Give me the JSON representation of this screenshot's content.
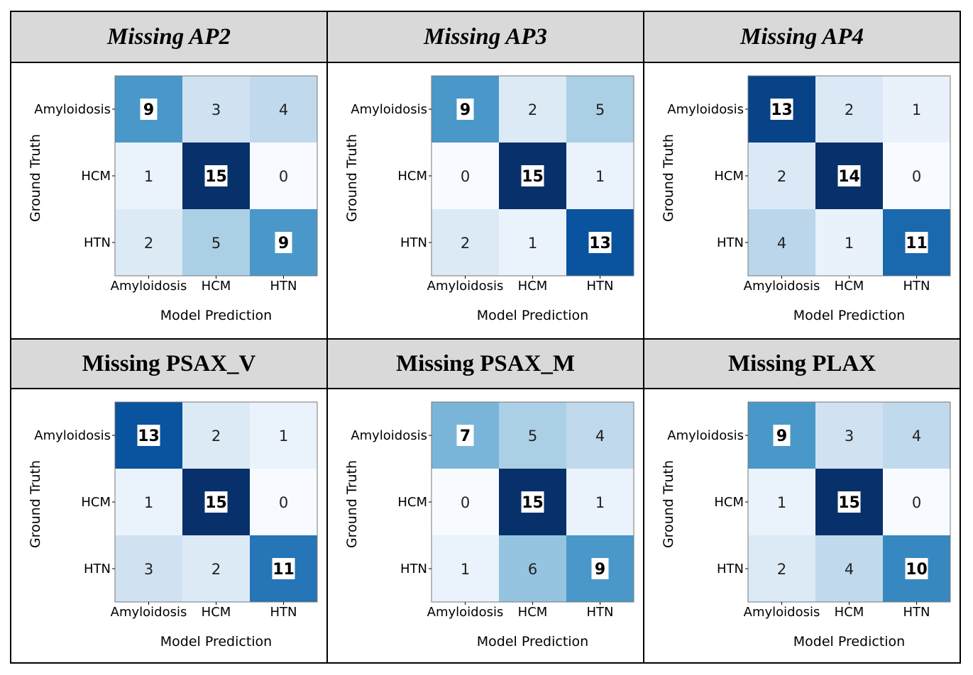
{
  "chart_data": [
    {
      "type": "heatmap",
      "title": "Missing AP2",
      "title_italic": true,
      "xlabel": "Model Prediction",
      "ylabel": "Ground Truth",
      "x_categories": [
        "Amyloidosis",
        "HCM",
        "HTN"
      ],
      "y_categories": [
        "Amyloidosis",
        "HCM",
        "HTN"
      ],
      "values": [
        [
          9,
          3,
          4
        ],
        [
          1,
          15,
          0
        ],
        [
          2,
          5,
          9
        ]
      ],
      "colormap": "Blues",
      "value_range": [
        0,
        15
      ]
    },
    {
      "type": "heatmap",
      "title": "Missing AP3",
      "title_italic": true,
      "xlabel": "Model Prediction",
      "ylabel": "Ground Truth",
      "x_categories": [
        "Amyloidosis",
        "HCM",
        "HTN"
      ],
      "y_categories": [
        "Amyloidosis",
        "HCM",
        "HTN"
      ],
      "values": [
        [
          9,
          2,
          5
        ],
        [
          0,
          15,
          1
        ],
        [
          2,
          1,
          13
        ]
      ],
      "colormap": "Blues",
      "value_range": [
        0,
        15
      ]
    },
    {
      "type": "heatmap",
      "title": "Missing AP4",
      "title_italic": true,
      "xlabel": "Model Prediction",
      "ylabel": "Ground Truth",
      "x_categories": [
        "Amyloidosis",
        "HCM",
        "HTN"
      ],
      "y_categories": [
        "Amyloidosis",
        "HCM",
        "HTN"
      ],
      "values": [
        [
          13,
          2,
          1
        ],
        [
          2,
          14,
          0
        ],
        [
          4,
          1,
          11
        ]
      ],
      "colormap": "Blues",
      "value_range": [
        0,
        14
      ]
    },
    {
      "type": "heatmap",
      "title": "Missing PSAX_V",
      "title_italic": false,
      "xlabel": "Model Prediction",
      "ylabel": "Ground Truth",
      "x_categories": [
        "Amyloidosis",
        "HCM",
        "HTN"
      ],
      "y_categories": [
        "Amyloidosis",
        "HCM",
        "HTN"
      ],
      "values": [
        [
          13,
          2,
          1
        ],
        [
          1,
          15,
          0
        ],
        [
          3,
          2,
          11
        ]
      ],
      "colormap": "Blues",
      "value_range": [
        0,
        15
      ]
    },
    {
      "type": "heatmap",
      "title": "Missing PSAX_M",
      "title_italic": false,
      "xlabel": "Model Prediction",
      "ylabel": "Ground Truth",
      "x_categories": [
        "Amyloidosis",
        "HCM",
        "HTN"
      ],
      "y_categories": [
        "Amyloidosis",
        "HCM",
        "HTN"
      ],
      "values": [
        [
          7,
          5,
          4
        ],
        [
          0,
          15,
          1
        ],
        [
          1,
          6,
          9
        ]
      ],
      "colormap": "Blues",
      "value_range": [
        0,
        15
      ]
    },
    {
      "type": "heatmap",
      "title": "Missing PLAX",
      "title_italic": false,
      "xlabel": "Model Prediction",
      "ylabel": "Ground Truth",
      "x_categories": [
        "Amyloidosis",
        "HCM",
        "HTN"
      ],
      "y_categories": [
        "Amyloidosis",
        "HCM",
        "HTN"
      ],
      "values": [
        [
          9,
          3,
          4
        ],
        [
          1,
          15,
          0
        ],
        [
          2,
          4,
          10
        ]
      ],
      "colormap": "Blues",
      "value_range": [
        0,
        15
      ]
    }
  ]
}
